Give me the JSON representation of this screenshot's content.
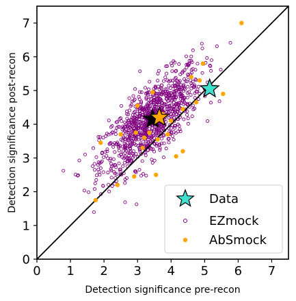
{
  "chart_data": {
    "type": "scatter",
    "title": "",
    "xlabel": "Detection significance pre-recon",
    "ylabel": "Detection significance post-recon",
    "xlim": [
      0,
      7.5
    ],
    "ylim": [
      0,
      7.5
    ],
    "xticks": [
      "0",
      "1",
      "2",
      "3",
      "4",
      "5",
      "6",
      "7"
    ],
    "yticks": [
      "0",
      "1",
      "2",
      "3",
      "4",
      "5",
      "6",
      "7"
    ],
    "grid": false,
    "legend_position": "lower-right",
    "diagonal_line": true,
    "series": [
      {
        "name": "Data",
        "marker": "star",
        "color": "#40E0D0",
        "points": [
          [
            3.45,
            4.15
          ],
          [
            3.65,
            4.2
          ],
          [
            5.15,
            5.05
          ]
        ]
      },
      {
        "name": "EZmock",
        "marker": "open-circle",
        "color": "#800080",
        "center": [
          3.4,
          4.1
        ],
        "spread": [
          0.75,
          0.8
        ],
        "count": 1000,
        "correlation": 0.75
      },
      {
        "name": "AbSmock",
        "marker": "filled-circle",
        "color": "#FFA500",
        "points": [
          [
            1.75,
            1.75
          ],
          [
            1.9,
            3.45
          ],
          [
            2.4,
            2.2
          ],
          [
            2.5,
            3.7
          ],
          [
            2.9,
            2.45
          ],
          [
            2.95,
            3.75
          ],
          [
            3.0,
            4.55
          ],
          [
            3.15,
            3.3
          ],
          [
            3.2,
            3.6
          ],
          [
            3.35,
            3.75
          ],
          [
            3.45,
            4.95
          ],
          [
            3.55,
            2.5
          ],
          [
            3.6,
            3.55
          ],
          [
            3.75,
            4.3
          ],
          [
            3.9,
            3.7
          ],
          [
            4.0,
            4.1
          ],
          [
            4.15,
            3.05
          ],
          [
            4.35,
            3.2
          ],
          [
            4.35,
            4.45
          ],
          [
            4.6,
            5.4
          ],
          [
            4.75,
            4.65
          ],
          [
            4.85,
            5.3
          ],
          [
            4.95,
            5.8
          ],
          [
            5.55,
            4.9
          ],
          [
            6.1,
            7.0
          ]
        ]
      }
    ]
  }
}
